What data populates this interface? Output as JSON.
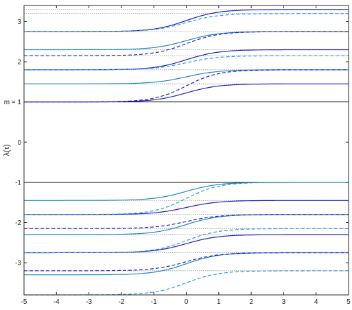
{
  "chart_data": {
    "type": "line",
    "xlim": [
      -5,
      5
    ],
    "ylim": [
      -3.8,
      3.4
    ],
    "grid": false,
    "ylabel": "λ(τ)",
    "annotations": [
      {
        "text": "m = 1",
        "x": -5,
        "y": 1
      }
    ],
    "xticks": [
      {
        "v": -5,
        "label": "-5"
      },
      {
        "v": -4,
        "label": "-4"
      },
      {
        "v": -3,
        "label": "-3"
      },
      {
        "v": -2,
        "label": "-2"
      },
      {
        "v": -1,
        "label": "-1"
      },
      {
        "v": 0,
        "label": "0"
      },
      {
        "v": 1,
        "label": "1"
      },
      {
        "v": 2,
        "label": "2"
      },
      {
        "v": 3,
        "label": "3"
      },
      {
        "v": 4,
        "label": "4"
      },
      {
        "v": 5,
        "label": "5"
      }
    ],
    "yticks": [
      {
        "v": 3,
        "label": "3"
      },
      {
        "v": 2,
        "label": "2"
      },
      {
        "v": 0,
        "label": "0"
      },
      {
        "v": -1,
        "label": "-1"
      },
      {
        "v": -2,
        "label": "-2"
      },
      {
        "v": -3,
        "label": "-3"
      }
    ],
    "colors": {
      "solid_dark": "#1f1fc8",
      "solid_teal": "#1f86c4",
      "dashed_dark": "#1f1fc8",
      "dashed_teal": "#2a9ad6",
      "reference": "#000000",
      "asymptote": "#909090"
    },
    "reference_lines": [
      1,
      -1
    ],
    "asymptotes": [
      3.3,
      3.2,
      2.75,
      2.3,
      2.15,
      1.8,
      1.45,
      -1.45,
      -1.8,
      -2.15,
      -2.3,
      -2.75,
      -3.2
    ],
    "series": [
      {
        "style": "solid_dark",
        "y0": 2.75,
        "y1": 3.3
      },
      {
        "style": "solid_teal",
        "y0": 2.3,
        "y1": 2.75
      },
      {
        "style": "solid_dark",
        "y0": 1.8,
        "y1": 2.3
      },
      {
        "style": "solid_teal",
        "y0": 1.45,
        "y1": 1.8
      },
      {
        "style": "solid_dark",
        "y0": 1.0,
        "y1": 1.45
      },
      {
        "style": "dashed_teal",
        "y0": 2.75,
        "y1": 3.2
      },
      {
        "style": "dashed_dark",
        "y0": 2.15,
        "y1": 2.75
      },
      {
        "style": "dashed_teal",
        "y0": 1.8,
        "y1": 2.15
      },
      {
        "style": "dashed_dark",
        "y0": 1.0,
        "y1": 1.8
      },
      {
        "style": "solid_teal",
        "y0": -1.45,
        "y1": -1.0
      },
      {
        "style": "solid_dark",
        "y0": -1.8,
        "y1": -1.45
      },
      {
        "style": "solid_teal",
        "y0": -2.3,
        "y1": -1.8
      },
      {
        "style": "solid_dark",
        "y0": -2.75,
        "y1": -2.3
      },
      {
        "style": "solid_teal",
        "y0": -3.3,
        "y1": -2.75
      },
      {
        "style": "dashed_teal",
        "y0": -1.8,
        "y1": -1.0
      },
      {
        "style": "dashed_dark",
        "y0": -2.15,
        "y1": -1.8
      },
      {
        "style": "dashed_teal",
        "y0": -2.75,
        "y1": -2.15
      },
      {
        "style": "dashed_dark",
        "y0": -3.2,
        "y1": -2.75
      },
      {
        "style": "dashed_teal",
        "y0": -3.8,
        "y1": -3.2
      }
    ]
  }
}
